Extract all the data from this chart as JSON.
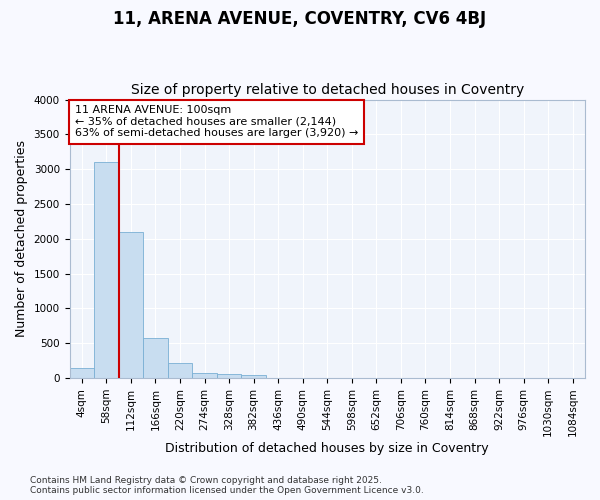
{
  "title": "11, ARENA AVENUE, COVENTRY, CV6 4BJ",
  "subtitle": "Size of property relative to detached houses in Coventry",
  "xlabel": "Distribution of detached houses by size in Coventry",
  "ylabel": "Number of detached properties",
  "categories": [
    "4sqm",
    "58sqm",
    "112sqm",
    "166sqm",
    "220sqm",
    "274sqm",
    "328sqm",
    "382sqm",
    "436sqm",
    "490sqm",
    "544sqm",
    "598sqm",
    "652sqm",
    "706sqm",
    "760sqm",
    "814sqm",
    "868sqm",
    "922sqm",
    "976sqm",
    "1030sqm",
    "1084sqm"
  ],
  "bar_values": [
    150,
    3100,
    2100,
    580,
    210,
    75,
    55,
    40,
    0,
    0,
    0,
    0,
    0,
    0,
    0,
    0,
    0,
    0,
    0,
    0,
    0
  ],
  "bar_color": "#c8ddf0",
  "bar_edgecolor": "#7aafd4",
  "vline_x": 1.5,
  "vline_color": "#cc0000",
  "annotation_title": "11 ARENA AVENUE: 100sqm",
  "annotation_line1": "← 35% of detached houses are smaller (2,144)",
  "annotation_line2": "63% of semi-detached houses are larger (3,920) →",
  "annotation_box_facecolor": "#ffffff",
  "annotation_box_edgecolor": "#cc0000",
  "ylim": [
    0,
    4000
  ],
  "yticks": [
    0,
    500,
    1000,
    1500,
    2000,
    2500,
    3000,
    3500,
    4000
  ],
  "footer_line1": "Contains HM Land Registry data © Crown copyright and database right 2025.",
  "footer_line2": "Contains public sector information licensed under the Open Government Licence v3.0.",
  "background_color": "#f8f9ff",
  "plot_bg_color": "#f0f4fb",
  "grid_color": "#ffffff",
  "title_fontsize": 12,
  "subtitle_fontsize": 10,
  "axis_label_fontsize": 9,
  "tick_fontsize": 7.5,
  "annotation_fontsize": 8,
  "footer_fontsize": 6.5
}
